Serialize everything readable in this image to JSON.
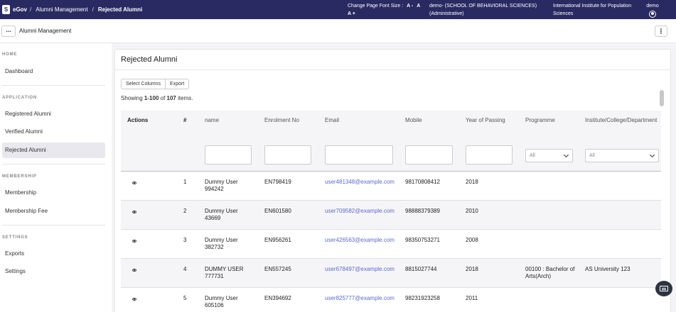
{
  "topbar": {
    "brand_logo": "S",
    "brand_name": "eGov",
    "breadcrumbs": [
      "Alumni Management",
      "Rejected Alumni"
    ],
    "separator": "/",
    "font_size_label": "Change Page Font Size :",
    "font_size_buttons": [
      "A -",
      "A",
      "A +"
    ],
    "context_text": "demo- (SCHOOL OF BEHAVIORAL SCIENCES) (Administrative)",
    "institute_text": "International Institute for Population Sciences",
    "user_name": "demo"
  },
  "subbar": {
    "menu_icon": "...",
    "title": "Alumni Management",
    "kebab_icon": "⋮"
  },
  "sidebar": {
    "sections": [
      {
        "title": "HOME",
        "items": [
          {
            "label": "Dashboard",
            "active": false
          }
        ]
      },
      {
        "title": "APPLICATION",
        "items": [
          {
            "label": "Registered Alumni",
            "active": false
          },
          {
            "label": "Verified Alumni",
            "active": false
          },
          {
            "label": "Rejected Alumni",
            "active": true
          }
        ]
      },
      {
        "title": "MEMBERSHIP",
        "items": [
          {
            "label": "Membership",
            "active": false
          },
          {
            "label": "Membership Fee",
            "active": false
          }
        ]
      },
      {
        "title": "SETTINGS",
        "items": [
          {
            "label": "Exports",
            "active": false
          },
          {
            "label": "Settings",
            "active": false
          }
        ]
      }
    ]
  },
  "main": {
    "title": "Rejected Alumni",
    "buttons": {
      "select_columns": "Select Columns",
      "export": "Export"
    },
    "summary": {
      "prefix": "Showing",
      "range": "1-100",
      "of": "of",
      "total": "107",
      "suffix": "items."
    },
    "table": {
      "columns": [
        "Actions",
        "#",
        "name",
        "Enrolment No",
        "Email",
        "Mobile",
        "Year of Passing",
        "Programme",
        "Institute/College/Department"
      ],
      "select_placeholder": "All",
      "rows": [
        {
          "num": "1",
          "name": "Dummy User 994242",
          "enrolment": "EN798419",
          "email": "user481348@example.com",
          "mobile": "98170808412",
          "year": "2018",
          "programme": "",
          "institute": ""
        },
        {
          "num": "2",
          "name": "Dummy User 43669",
          "enrolment": "EN601580",
          "email": "user709582@example.com",
          "mobile": "98888379389",
          "year": "2010",
          "programme": "",
          "institute": ""
        },
        {
          "num": "3",
          "name": "Dummy User 382732",
          "enrolment": "EN956261",
          "email": "user426563@example.com",
          "mobile": "98350753271",
          "year": "2008",
          "programme": "",
          "institute": ""
        },
        {
          "num": "4",
          "name": "DUMMY USER 777731",
          "enrolment": "EN557245",
          "email": "user678497@example.com",
          "mobile": "8815027744",
          "year": "2018",
          "programme": "00100 : Bachelor of Arts(Arch)",
          "institute": "AS University 123"
        },
        {
          "num": "5",
          "name": "Dummy User 605106",
          "enrolment": "EN394692",
          "email": "user825777@example.com",
          "mobile": "98231923258",
          "year": "2011",
          "programme": "",
          "institute": ""
        }
      ]
    }
  },
  "colors": {
    "topbar": "#2a2a63",
    "link": "#5b6ad0",
    "active_item": "#e8e8ee"
  }
}
